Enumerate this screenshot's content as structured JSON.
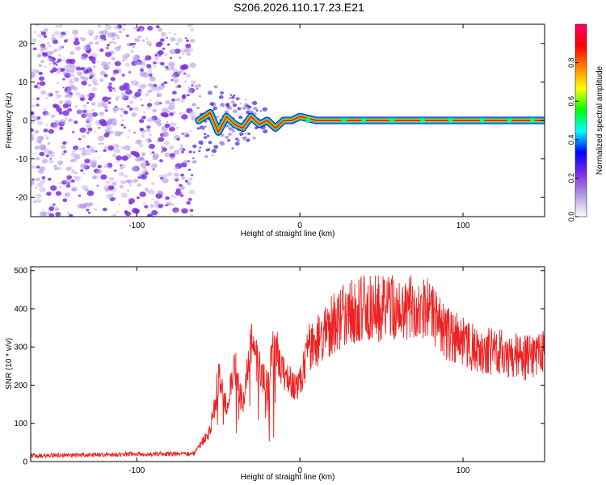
{
  "figure_title": "S206.2026.110.17.23.E21",
  "chart_data": [
    {
      "type": "heatmap",
      "title": "S206.2026.110.17.23.E21",
      "xlabel": "Height of straight line (km)",
      "ylabel": "Frequency (Hz)",
      "xlim": [
        -165,
        150
      ],
      "ylim": [
        -25,
        25
      ],
      "xticks": [
        -100,
        0,
        100
      ],
      "yticks": [
        -20,
        -10,
        0,
        10,
        20
      ],
      "grid": false,
      "noise_region_x": [
        -165,
        -65
      ],
      "noise_region_density": 0.12,
      "signal_line": [
        [
          -62,
          0
        ],
        [
          -55,
          2
        ],
        [
          -50,
          -3
        ],
        [
          -45,
          1
        ],
        [
          -40,
          -1
        ],
        [
          -35,
          -2
        ],
        [
          -30,
          1
        ],
        [
          -25,
          -1
        ],
        [
          -20,
          0
        ],
        [
          -15,
          -2
        ],
        [
          -10,
          0
        ],
        [
          -5,
          0
        ],
        [
          0,
          1
        ],
        [
          10,
          0
        ],
        [
          150,
          0
        ]
      ],
      "signal_amplitude_after_0": 0.9,
      "colorbar": {
        "label": "Normalized spectral amplitude",
        "range": [
          0.0,
          1.0
        ],
        "ticks": [
          0.0,
          0.2,
          0.4,
          0.6,
          0.8
        ],
        "colors": [
          "#ffffff",
          "#b49be3",
          "#7d2fe0",
          "#0000ff",
          "#00ffff",
          "#00ff00",
          "#ffff00",
          "#ff8000",
          "#ff0000",
          "#ff0066"
        ]
      }
    },
    {
      "type": "line",
      "xlabel": "Height of straight line (km)",
      "ylabel": "SNR (10 * v/v)",
      "xlim": [
        -165,
        150
      ],
      "ylim": [
        0,
        510
      ],
      "xticks": [
        -100,
        0,
        100
      ],
      "yticks": [
        0,
        100,
        200,
        300,
        400,
        500
      ],
      "grid": false,
      "color": "#ee2222",
      "series": [
        {
          "name": "SNR",
          "x": [
            -165,
            -140,
            -120,
            -100,
            -80,
            -65,
            -55,
            -50,
            -45,
            -40,
            -35,
            -30,
            -25,
            -20,
            -15,
            -10,
            -5,
            0,
            5,
            10,
            20,
            30,
            40,
            50,
            60,
            70,
            80,
            90,
            100,
            110,
            120,
            130,
            140,
            150
          ],
          "y": [
            15,
            17,
            18,
            20,
            20,
            20,
            80,
            220,
            140,
            250,
            150,
            310,
            250,
            190,
            320,
            230,
            210,
            200,
            300,
            310,
            360,
            390,
            400,
            400,
            410,
            405,
            390,
            340,
            320,
            290,
            290,
            280,
            270,
            290
          ]
        }
      ]
    }
  ]
}
